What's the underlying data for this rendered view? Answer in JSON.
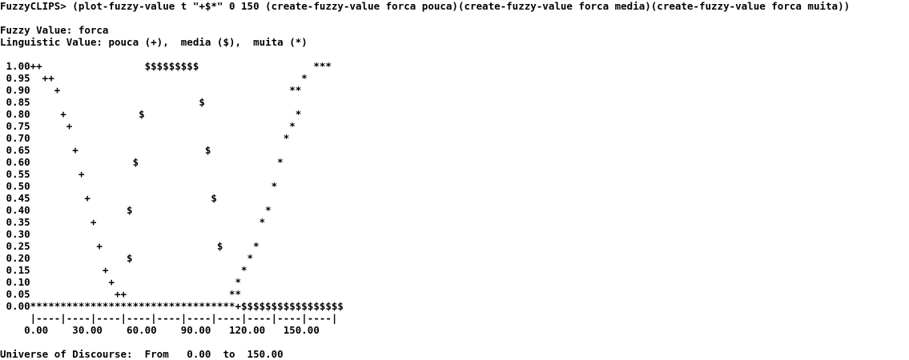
{
  "console": {
    "command": "FuzzyCLIPS> (plot-fuzzy-value t \"+$*\" 0 150 (create-fuzzy-value forca pouca)(create-fuzzy-value forca media)(create-fuzzy-value forca muita))",
    "fuzzy_value_line": "Fuzzy Value: forca",
    "linguistic_value_line": "Linguistic Value: pouca (+),  media ($),  muita (*)",
    "plot_rows": [
      " 1.00++                 $$$$$$$$$                   ***",
      " 0.95  ++                                         *",
      " 0.90    +                                      **",
      " 0.85                            $",
      " 0.80     +            $                         *",
      " 0.75      +                                    *",
      " 0.70                                          *",
      " 0.65       +                     $",
      " 0.60                 $                       *",
      " 0.55        +",
      " 0.50                                        *",
      " 0.45         +                    $",
      " 0.40                $                      *",
      " 0.35          +                           *",
      " 0.30",
      " 0.25           +                   $     *",
      " 0.20                $                   *",
      " 0.15            +                      *",
      " 0.10             +                    *",
      " 0.05              ++                 **",
      " 0.00**********************************+$$$$$$$$$$$$$$$$$",
      "     |----|----|----|----|----|----|----|----|----|----|",
      "    0.00    30.00    60.00    90.00   120.00   150.00"
    ],
    "universe_line": "Universe of Discourse:  From   0.00  to  150.00"
  }
}
